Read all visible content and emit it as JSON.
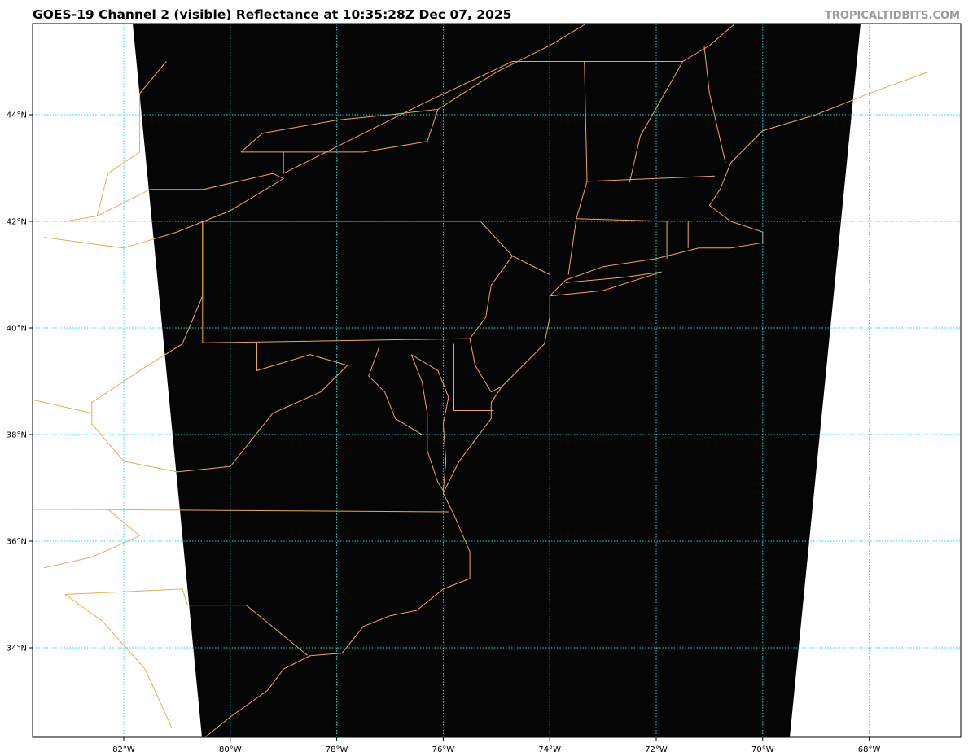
{
  "header": {
    "title": "GOES-19 Channel 2 (visible) Reflectance at 10:35:28Z Dec 07, 2025",
    "credit": "TROPICALTIDBITS.COM"
  },
  "map": {
    "satellite": "GOES-19",
    "channel": "Channel 2 (visible)",
    "product": "Reflectance",
    "valid_time": "10:35:28Z Dec 07, 2025",
    "lon_labels": [
      "82°W",
      "80°W",
      "78°W",
      "76°W",
      "74°W",
      "72°W",
      "70°W",
      "68°W"
    ],
    "lon_values": [
      -82,
      -80,
      -78,
      -76,
      -74,
      -72,
      -70,
      -68
    ],
    "lat_labels": [
      "44°N",
      "42°N",
      "40°N",
      "38°N",
      "36°N",
      "34°N"
    ],
    "lat_values": [
      44,
      42,
      40,
      38,
      36,
      34
    ],
    "colors": {
      "imagery": "#050505",
      "no_data": "#ffffff",
      "coastlines": "#f0a850",
      "gridlines": "#00e5e5",
      "credit": "#9a9a9a"
    }
  }
}
